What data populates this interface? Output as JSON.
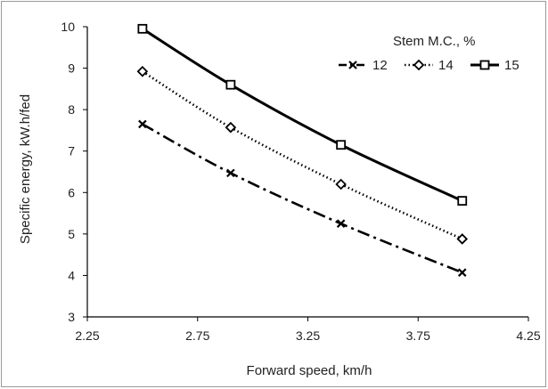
{
  "chart_data": {
    "type": "line",
    "xlabel": "Forward speed, km/h",
    "ylabel": "Specific energy, kW.h/fed",
    "xlim": [
      2.25,
      4.25
    ],
    "ylim": [
      3,
      10
    ],
    "x_ticks": [
      "2.25",
      "2.75",
      "3.25",
      "3.75",
      "4.25"
    ],
    "y_ticks": [
      "3",
      "4",
      "5",
      "6",
      "7",
      "8",
      "9",
      "10"
    ],
    "grid": false,
    "legend_title": "Stem  M.C., %",
    "legend_position": "top-right",
    "series": [
      {
        "name": "12",
        "marker": "x",
        "line": "dash-dot",
        "x": [
          2.5,
          2.9,
          3.4,
          3.95
        ],
        "y": [
          7.65,
          6.47,
          5.25,
          4.07
        ]
      },
      {
        "name": "14",
        "marker": "diamond",
        "line": "dotted",
        "x": [
          2.5,
          2.9,
          3.4,
          3.95
        ],
        "y": [
          8.92,
          7.57,
          6.2,
          4.88
        ]
      },
      {
        "name": "15",
        "marker": "square",
        "line": "solid",
        "x": [
          2.5,
          2.9,
          3.4,
          3.95
        ],
        "y": [
          9.95,
          8.6,
          7.15,
          5.8
        ]
      }
    ]
  },
  "colors": {
    "line": "#000000",
    "axis": "#000000",
    "frame": "#9a9a9a"
  }
}
